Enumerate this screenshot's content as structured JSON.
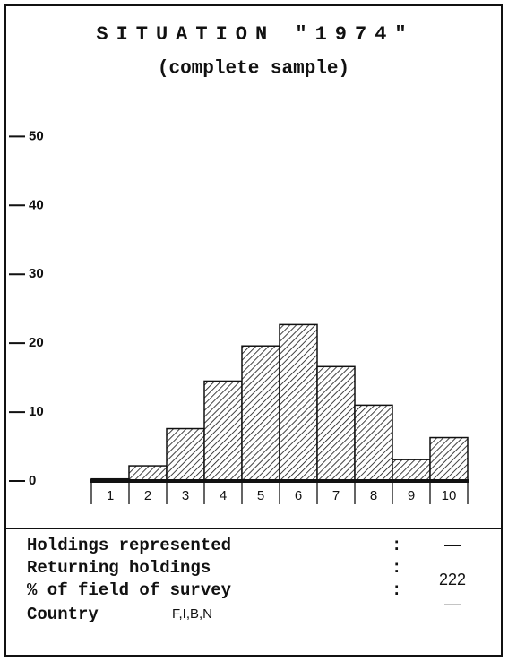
{
  "chart_data": {
    "type": "bar",
    "title": "SITUATION \"1974\"",
    "subtitle": "(complete sample)",
    "categories": [
      "1",
      "2",
      "3",
      "4",
      "5",
      "6",
      "7",
      "8",
      "9",
      "10"
    ],
    "values": [
      0.3,
      2.2,
      7.6,
      14.5,
      19.6,
      22.7,
      16.6,
      11,
      3.1,
      6.3
    ],
    "color": "#111111",
    "ylim": [
      0,
      52
    ],
    "yticks": [
      0,
      10,
      20,
      30,
      40,
      50
    ]
  },
  "footer": {
    "rows": [
      {
        "label": "Holdings represented",
        "value": "—"
      },
      {
        "label": "Returning holdings",
        "value": "222"
      },
      {
        "label": "% of field of survey",
        "value": "—"
      },
      {
        "label": "Country",
        "value": "F,I,B,N"
      }
    ],
    "separator": ":"
  }
}
